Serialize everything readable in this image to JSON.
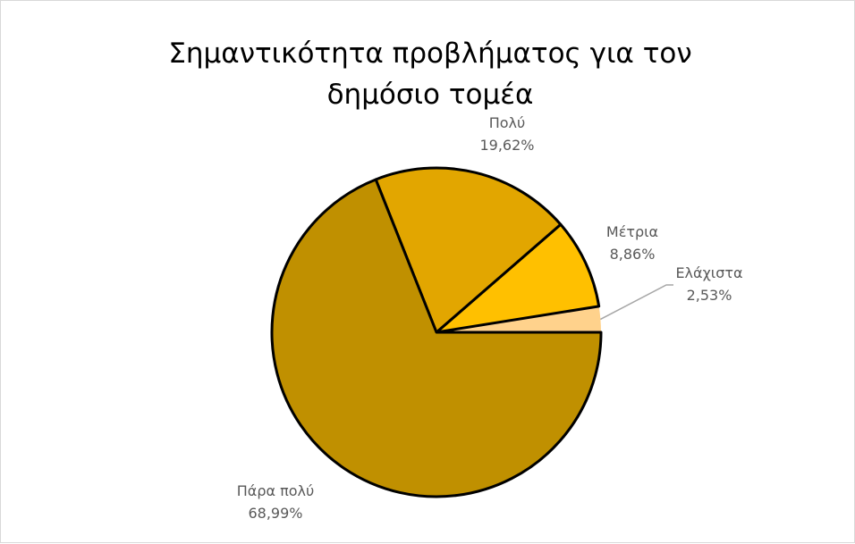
{
  "chart_data": {
    "type": "pie",
    "title": "Σημαντικότητα προβλήματος για τον δημόσιο τομέα",
    "categories": [
      "Ελάχιστα",
      "Μέτρια",
      "Πολύ",
      "Πάρα πολύ"
    ],
    "values": [
      2.53,
      8.86,
      19.62,
      68.99
    ],
    "value_labels": [
      "2,53%",
      "8,86%",
      "19,62%",
      "68,99%"
    ],
    "colors": [
      "#ffd28c",
      "#ffc000",
      "#e2a600",
      "#c09000"
    ],
    "legend": "none"
  }
}
